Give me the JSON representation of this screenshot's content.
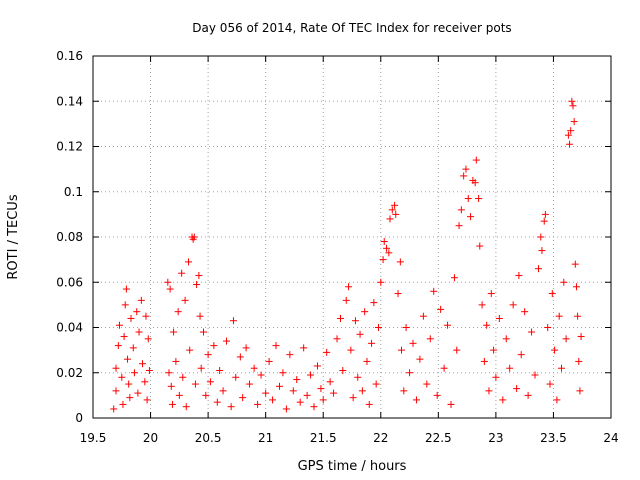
{
  "chart_data": {
    "type": "scatter",
    "title": "Day 056 of 2014, Rate Of TEC Index for receiver pots",
    "xlabel": "GPS time / hours",
    "ylabel": "ROTI / TECUs",
    "xlim": [
      19.5,
      24
    ],
    "ylim": [
      0,
      0.16
    ],
    "xticks": [
      "19.5",
      "20",
      "20.5",
      "21",
      "21.5",
      "22",
      "22.5",
      "23",
      "23.5",
      "24"
    ],
    "yticks": [
      "0",
      "0.02",
      "0.04",
      "0.06",
      "0.08",
      "0.1",
      "0.12",
      "0.14",
      "0.16"
    ],
    "grid": true,
    "marker": "plus",
    "color": "#ff0000",
    "series": [
      {
        "name": "ROTI",
        "points": [
          [
            19.68,
            0.004
          ],
          [
            19.7,
            0.012
          ],
          [
            19.7,
            0.022
          ],
          [
            19.72,
            0.032
          ],
          [
            19.73,
            0.041
          ],
          [
            19.75,
            0.018
          ],
          [
            19.76,
            0.006
          ],
          [
            19.77,
            0.036
          ],
          [
            19.78,
            0.05
          ],
          [
            19.79,
            0.057
          ],
          [
            19.8,
            0.026
          ],
          [
            19.81,
            0.015
          ],
          [
            19.82,
            0.009
          ],
          [
            19.83,
            0.044
          ],
          [
            19.85,
            0.031
          ],
          [
            19.86,
            0.02
          ],
          [
            19.88,
            0.047
          ],
          [
            19.89,
            0.011
          ],
          [
            19.9,
            0.038
          ],
          [
            19.92,
            0.052
          ],
          [
            19.93,
            0.024
          ],
          [
            19.95,
            0.016
          ],
          [
            19.96,
            0.045
          ],
          [
            19.97,
            0.008
          ],
          [
            19.98,
            0.035
          ],
          [
            19.99,
            0.021
          ],
          [
            20.15,
            0.06
          ],
          [
            20.16,
            0.02
          ],
          [
            20.17,
            0.057
          ],
          [
            20.18,
            0.014
          ],
          [
            20.19,
            0.006
          ],
          [
            20.2,
            0.038
          ],
          [
            20.22,
            0.025
          ],
          [
            20.24,
            0.047
          ],
          [
            20.25,
            0.01
          ],
          [
            20.27,
            0.064
          ],
          [
            20.28,
            0.018
          ],
          [
            20.3,
            0.052
          ],
          [
            20.31,
            0.005
          ],
          [
            20.33,
            0.069
          ],
          [
            20.34,
            0.03
          ],
          [
            20.36,
            0.08
          ],
          [
            20.37,
            0.079
          ],
          [
            20.38,
            0.08
          ],
          [
            20.39,
            0.015
          ],
          [
            20.4,
            0.059
          ],
          [
            20.42,
            0.063
          ],
          [
            20.43,
            0.045
          ],
          [
            20.44,
            0.022
          ],
          [
            20.46,
            0.038
          ],
          [
            20.48,
            0.01
          ],
          [
            20.5,
            0.028
          ],
          [
            20.52,
            0.016
          ],
          [
            20.55,
            0.032
          ],
          [
            20.58,
            0.007
          ],
          [
            20.6,
            0.021
          ],
          [
            20.63,
            0.012
          ],
          [
            20.66,
            0.034
          ],
          [
            20.7,
            0.005
          ],
          [
            20.72,
            0.043
          ],
          [
            20.74,
            0.018
          ],
          [
            20.78,
            0.027
          ],
          [
            20.8,
            0.009
          ],
          [
            20.83,
            0.031
          ],
          [
            20.86,
            0.015
          ],
          [
            20.9,
            0.022
          ],
          [
            20.93,
            0.006
          ],
          [
            20.96,
            0.019
          ],
          [
            21.0,
            0.011
          ],
          [
            21.03,
            0.025
          ],
          [
            21.06,
            0.008
          ],
          [
            21.09,
            0.032
          ],
          [
            21.12,
            0.014
          ],
          [
            21.15,
            0.02
          ],
          [
            21.18,
            0.004
          ],
          [
            21.21,
            0.028
          ],
          [
            21.24,
            0.012
          ],
          [
            21.27,
            0.017
          ],
          [
            21.3,
            0.007
          ],
          [
            21.33,
            0.031
          ],
          [
            21.36,
            0.01
          ],
          [
            21.39,
            0.019
          ],
          [
            21.42,
            0.005
          ],
          [
            21.45,
            0.023
          ],
          [
            21.48,
            0.013
          ],
          [
            21.5,
            0.008
          ],
          [
            21.53,
            0.029
          ],
          [
            21.56,
            0.016
          ],
          [
            21.59,
            0.011
          ],
          [
            21.62,
            0.035
          ],
          [
            21.65,
            0.044
          ],
          [
            21.67,
            0.021
          ],
          [
            21.7,
            0.052
          ],
          [
            21.72,
            0.058
          ],
          [
            21.74,
            0.03
          ],
          [
            21.76,
            0.009
          ],
          [
            21.78,
            0.043
          ],
          [
            21.8,
            0.018
          ],
          [
            21.82,
            0.037
          ],
          [
            21.84,
            0.012
          ],
          [
            21.86,
            0.047
          ],
          [
            21.88,
            0.025
          ],
          [
            21.9,
            0.006
          ],
          [
            21.92,
            0.033
          ],
          [
            21.94,
            0.051
          ],
          [
            21.96,
            0.015
          ],
          [
            21.98,
            0.04
          ],
          [
            22.0,
            0.06
          ],
          [
            22.02,
            0.07
          ],
          [
            22.03,
            0.078
          ],
          [
            22.05,
            0.075
          ],
          [
            22.07,
            0.073
          ],
          [
            22.08,
            0.088
          ],
          [
            22.1,
            0.092
          ],
          [
            22.12,
            0.094
          ],
          [
            22.13,
            0.09
          ],
          [
            22.15,
            0.055
          ],
          [
            22.17,
            0.069
          ],
          [
            22.18,
            0.03
          ],
          [
            22.2,
            0.012
          ],
          [
            22.22,
            0.04
          ],
          [
            22.25,
            0.02
          ],
          [
            22.28,
            0.033
          ],
          [
            22.31,
            0.008
          ],
          [
            22.34,
            0.026
          ],
          [
            22.37,
            0.045
          ],
          [
            22.4,
            0.015
          ],
          [
            22.43,
            0.035
          ],
          [
            22.46,
            0.056
          ],
          [
            22.49,
            0.01
          ],
          [
            22.52,
            0.048
          ],
          [
            22.55,
            0.022
          ],
          [
            22.58,
            0.041
          ],
          [
            22.61,
            0.006
          ],
          [
            22.64,
            0.062
          ],
          [
            22.66,
            0.03
          ],
          [
            22.68,
            0.085
          ],
          [
            22.7,
            0.092
          ],
          [
            22.72,
            0.107
          ],
          [
            22.74,
            0.11
          ],
          [
            22.76,
            0.097
          ],
          [
            22.78,
            0.089
          ],
          [
            22.8,
            0.105
          ],
          [
            22.82,
            0.104
          ],
          [
            22.83,
            0.114
          ],
          [
            22.85,
            0.097
          ],
          [
            22.86,
            0.076
          ],
          [
            22.88,
            0.05
          ],
          [
            22.9,
            0.025
          ],
          [
            22.92,
            0.041
          ],
          [
            22.94,
            0.012
          ],
          [
            22.96,
            0.055
          ],
          [
            22.98,
            0.03
          ],
          [
            23.0,
            0.018
          ],
          [
            23.03,
            0.044
          ],
          [
            23.06,
            0.008
          ],
          [
            23.09,
            0.035
          ],
          [
            23.12,
            0.022
          ],
          [
            23.15,
            0.05
          ],
          [
            23.18,
            0.013
          ],
          [
            23.2,
            0.063
          ],
          [
            23.22,
            0.028
          ],
          [
            23.25,
            0.047
          ],
          [
            23.28,
            0.01
          ],
          [
            23.31,
            0.038
          ],
          [
            23.34,
            0.019
          ],
          [
            23.37,
            0.066
          ],
          [
            23.39,
            0.08
          ],
          [
            23.4,
            0.074
          ],
          [
            23.42,
            0.087
          ],
          [
            23.43,
            0.09
          ],
          [
            23.45,
            0.04
          ],
          [
            23.47,
            0.015
          ],
          [
            23.49,
            0.055
          ],
          [
            23.51,
            0.03
          ],
          [
            23.53,
            0.008
          ],
          [
            23.55,
            0.045
          ],
          [
            23.57,
            0.022
          ],
          [
            23.59,
            0.06
          ],
          [
            23.61,
            0.035
          ],
          [
            23.63,
            0.125
          ],
          [
            23.64,
            0.121
          ],
          [
            23.65,
            0.127
          ],
          [
            23.66,
            0.14
          ],
          [
            23.67,
            0.138
          ],
          [
            23.68,
            0.131
          ],
          [
            23.69,
            0.068
          ],
          [
            23.7,
            0.058
          ],
          [
            23.71,
            0.045
          ],
          [
            23.72,
            0.025
          ],
          [
            23.73,
            0.012
          ],
          [
            23.74,
            0.036
          ]
        ]
      }
    ]
  }
}
